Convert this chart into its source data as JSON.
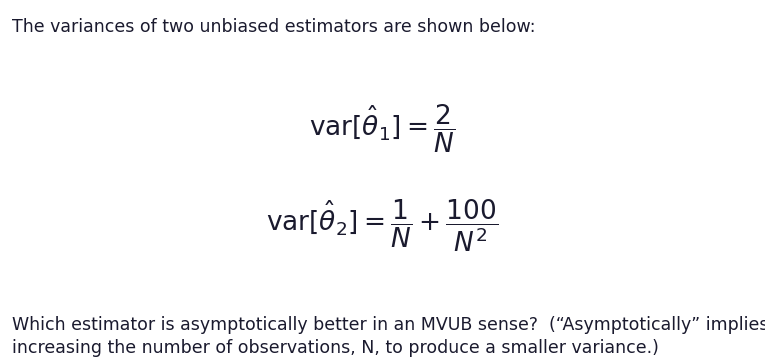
{
  "background_color": "#ffffff",
  "text_color": "#1a1a2e",
  "intro_text": "The variances of two unbiased estimators are shown below:",
  "footer_line1": "Which estimator is asymptotically better in an MVUB sense?  (“Asymptotically” implies",
  "footer_line2": "increasing the number of observations, N, to produce a smaller variance.)",
  "intro_fontsize": 12.5,
  "eq_fontsize": 19,
  "footer_fontsize": 12.5,
  "fig_width": 7.65,
  "fig_height": 3.58,
  "dpi": 100
}
